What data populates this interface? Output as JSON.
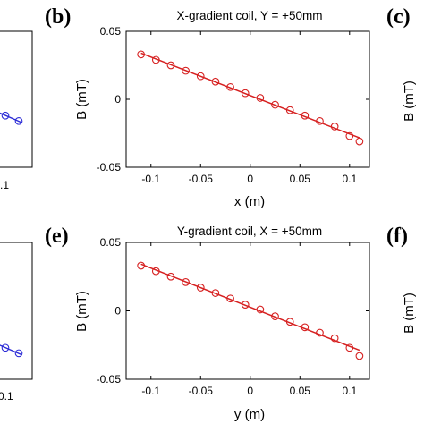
{
  "colors": {
    "red": "#d62020",
    "blue": "#2a2ad6",
    "axis": "#000000"
  },
  "chart_data": [
    {
      "id": "b",
      "type": "line",
      "panel_label": "(b)",
      "title": "X-gradient coil, Y = +50mm",
      "xlabel": "x (m)",
      "ylabel": "B (mT)",
      "xlim": [
        -0.125,
        0.12
      ],
      "ylim": [
        -0.05,
        0.05
      ],
      "xticks": [
        -0.1,
        -0.05,
        0,
        0.05,
        0.1
      ],
      "xtick_labels": [
        "-0.1",
        "-0.05",
        "0",
        "0.05",
        "0.1"
      ],
      "yticks": [
        -0.05,
        0,
        0.05
      ],
      "ytick_labels": [
        "-0.05",
        "0",
        "0.05"
      ],
      "grid": false,
      "series": [
        {
          "color": "#d62020",
          "marker": "circle",
          "fit_line": true,
          "x": [
            -0.11,
            -0.095,
            -0.08,
            -0.065,
            -0.05,
            -0.035,
            -0.02,
            -0.005,
            0.01,
            0.025,
            0.04,
            0.055,
            0.07,
            0.085,
            0.1,
            0.11
          ],
          "y": [
            0.033,
            0.029,
            0.025,
            0.021,
            0.017,
            0.013,
            0.009,
            0.0045,
            0.001,
            -0.004,
            -0.008,
            -0.012,
            -0.016,
            -0.02,
            -0.027,
            -0.031
          ]
        }
      ]
    },
    {
      "id": "e",
      "type": "line",
      "panel_label": "(e)",
      "title": "Y-gradient coil, X = +50mm",
      "xlabel": "y (m)",
      "ylabel": "B (mT)",
      "xlim": [
        -0.125,
        0.12
      ],
      "ylim": [
        -0.05,
        0.05
      ],
      "xticks": [
        -0.1,
        -0.05,
        0,
        0.05,
        0.1
      ],
      "xtick_labels": [
        "-0.1",
        "-0.05",
        "0",
        "0.05",
        "0.1"
      ],
      "yticks": [
        -0.05,
        0,
        0.05
      ],
      "ytick_labels": [
        "-0.05",
        "0",
        "0.05"
      ],
      "grid": false,
      "series": [
        {
          "color": "#d62020",
          "marker": "circle",
          "fit_line": true,
          "x": [
            -0.11,
            -0.095,
            -0.08,
            -0.065,
            -0.05,
            -0.035,
            -0.02,
            -0.005,
            0.01,
            0.025,
            0.04,
            0.055,
            0.07,
            0.085,
            0.1,
            0.11
          ],
          "y": [
            0.033,
            0.029,
            0.025,
            0.021,
            0.017,
            0.013,
            0.009,
            0.0045,
            0.001,
            -0.004,
            -0.008,
            -0.012,
            -0.016,
            -0.02,
            -0.027,
            -0.033
          ]
        }
      ]
    }
  ],
  "partial_panels": {
    "left_top": {
      "xtick_label": ".1",
      "series_color": "#2a2ad6",
      "marker_y": [
        -0.012,
        -0.016
      ],
      "line_y": [
        -0.011,
        -0.017
      ]
    },
    "left_bottom": {
      "xtick_label": "0.1",
      "series_color": "#2a2ad6",
      "marker_y": [
        -0.027,
        -0.031
      ],
      "line_y": [
        -0.026,
        -0.032
      ]
    },
    "right_top": {
      "panel_label": "(c)",
      "ylabel": "B (mT)"
    },
    "right_bottom": {
      "panel_label": "(f)",
      "ylabel": "B (mT)"
    }
  }
}
